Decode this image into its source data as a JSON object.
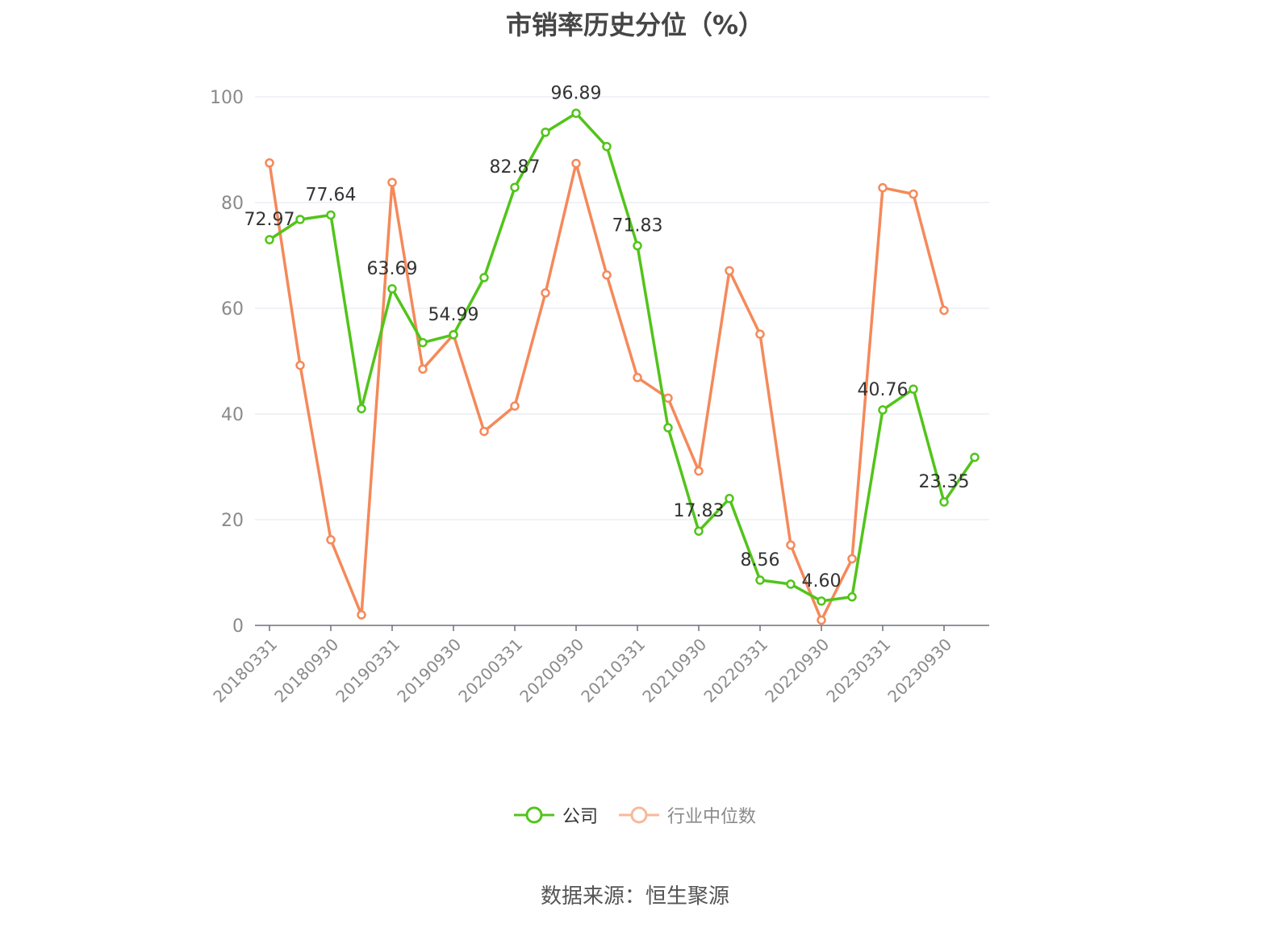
{
  "title": "市销率历史分位（%）",
  "source": "数据来源：恒生聚源",
  "colors": {
    "company": "#52c41a",
    "industry": "#f5895a",
    "industry_legend_faded": "#f8b89a"
  },
  "chart_data": {
    "type": "line",
    "title": "市销率历史分位（%）",
    "xlabel": "",
    "ylabel": "",
    "ylim": [
      0,
      100
    ],
    "yticks": [
      0,
      20,
      40,
      60,
      80,
      100
    ],
    "grid": true,
    "legend_position": "bottom",
    "x": [
      "20180331",
      "20180630",
      "20180930",
      "20181231",
      "20190331",
      "20190630",
      "20190930",
      "20191231",
      "20200331",
      "20200630",
      "20200930",
      "20201231",
      "20210331",
      "20210630",
      "20210930",
      "20211231",
      "20220331",
      "20220630",
      "20220930",
      "20221231",
      "20230331",
      "20230630",
      "20230930",
      "20231231"
    ],
    "x_tick_labels": [
      "20180331",
      "20180930",
      "20190331",
      "20190930",
      "20200331",
      "20200930",
      "20210331",
      "20210930",
      "20220331",
      "20220930",
      "20230331",
      "20230930"
    ],
    "series": [
      {
        "name": "公司",
        "color": "#52c41a",
        "values": [
          72.97,
          76.8,
          77.64,
          41.0,
          63.69,
          53.5,
          54.99,
          65.8,
          82.87,
          93.3,
          96.89,
          90.6,
          71.83,
          37.4,
          17.83,
          24.0,
          8.56,
          7.8,
          4.6,
          5.4,
          40.76,
          44.7,
          23.35,
          31.8
        ],
        "data_labels": {
          "0": "72.97",
          "2": "77.64",
          "4": "63.69",
          "6": "54.99",
          "8": "82.87",
          "10": "96.89",
          "12": "71.83",
          "14": "17.83",
          "16": "8.56",
          "18": "4.60",
          "20": "40.76",
          "22": "23.35"
        }
      },
      {
        "name": "行业中位数",
        "color": "#f5895a",
        "values": [
          87.5,
          49.2,
          16.2,
          2.0,
          83.8,
          48.5,
          55.0,
          36.7,
          41.5,
          62.9,
          87.4,
          66.3,
          46.9,
          43.0,
          29.2,
          67.1,
          55.1,
          15.2,
          1.0,
          12.6,
          82.8,
          81.6,
          59.6,
          null
        ]
      }
    ]
  }
}
